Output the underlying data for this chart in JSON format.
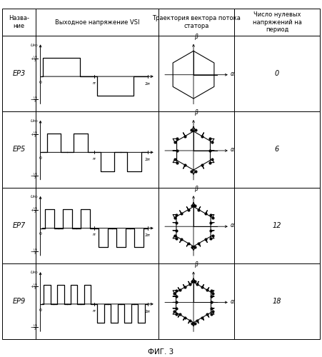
{
  "title": "ФИГ. 3",
  "col_headers": [
    "Назва-\nние",
    "Выходное напряжение VSI",
    "Траектория вектора потока\nстатора",
    "Число нулевых\nнапряжений на\nпериод"
  ],
  "row_names": [
    "ЕР3",
    "ЕР5",
    "ЕР7",
    "ЕР9"
  ],
  "zero_counts": [
    "0",
    "6",
    "12",
    "18"
  ],
  "pulses_per_half": [
    1,
    2,
    3,
    4
  ],
  "bg_color": "#ffffff",
  "line_color": "#000000"
}
